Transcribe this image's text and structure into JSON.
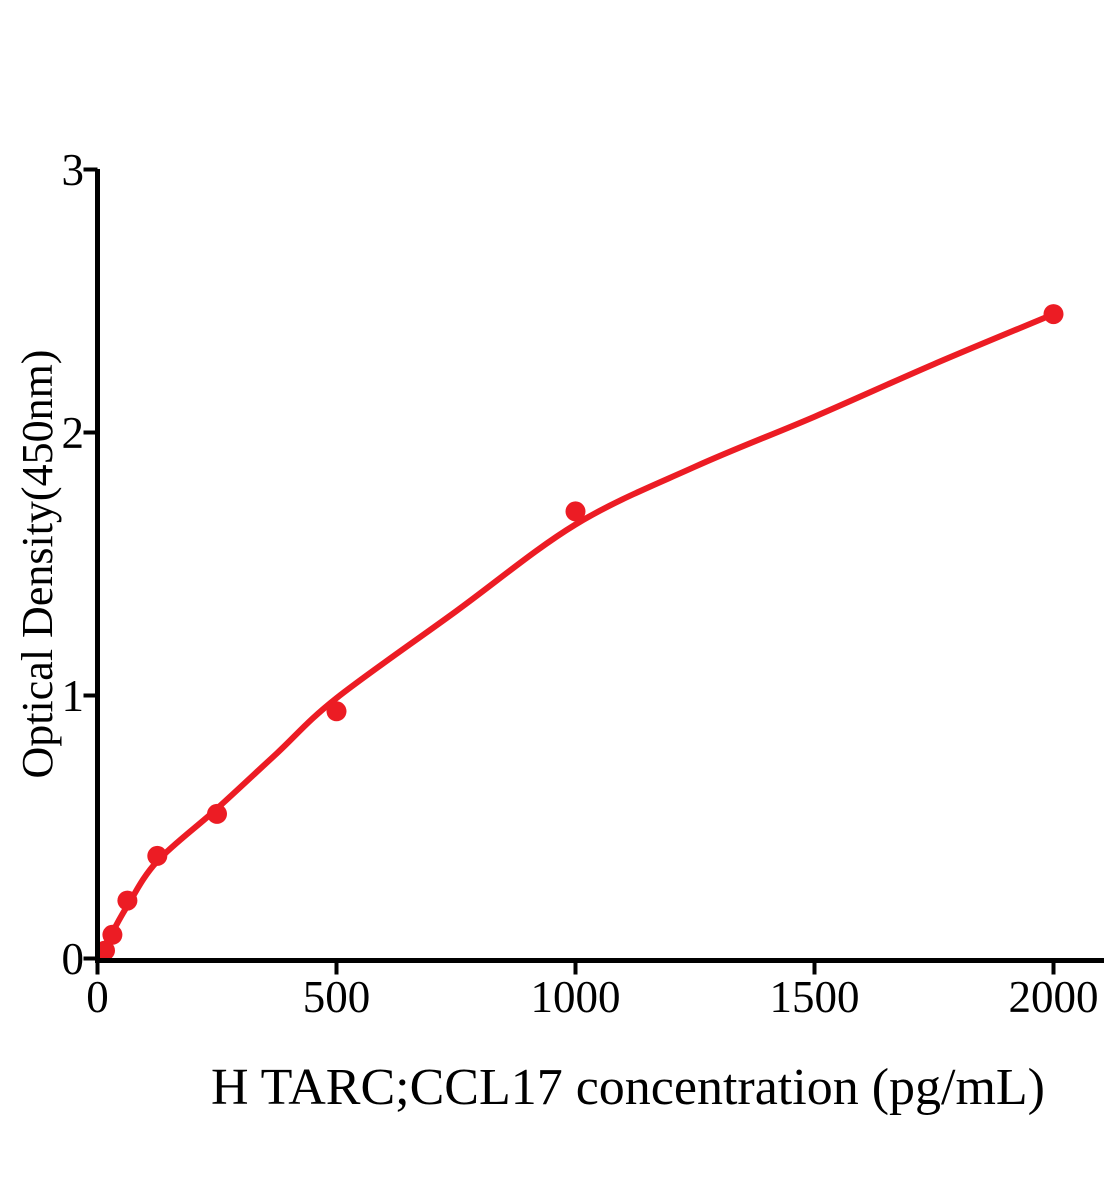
{
  "figure": {
    "background_color": "#ffffff",
    "axis_color": "#000000",
    "accent_color": "#EC1C24"
  },
  "chart_data": {
    "type": "scatter",
    "title": "",
    "xlabel": "H TARC;CCL17 concentration (pg/mL)",
    "ylabel": "Optical Density(450nm)",
    "x_axis": {
      "min": 0,
      "max": 2105,
      "ticks": [
        0,
        500,
        1000,
        1500,
        2000
      ]
    },
    "y_axis": {
      "min": 0,
      "max": 3,
      "ticks": [
        0,
        1,
        2,
        3
      ]
    },
    "grid": false,
    "legend": false,
    "series": [
      {
        "name": "standard-points",
        "type": "scatter",
        "color": "#EC1C24",
        "x": [
          15.6,
          31.25,
          62.5,
          125,
          250,
          500,
          1000,
          2000
        ],
        "y": [
          0.03,
          0.09,
          0.22,
          0.39,
          0.55,
          0.94,
          1.7,
          2.45
        ]
      },
      {
        "name": "fitted-curve",
        "type": "line",
        "color": "#EC1C24",
        "x": [
          0,
          15.6,
          31.25,
          62.5,
          125,
          250,
          375,
          500,
          750,
          1000,
          1250,
          1500,
          1750,
          2000
        ],
        "y": [
          0.0,
          0.05,
          0.1,
          0.2,
          0.37,
          0.57,
          0.78,
          0.99,
          1.32,
          1.65,
          1.87,
          2.06,
          2.26,
          2.45
        ]
      }
    ]
  }
}
